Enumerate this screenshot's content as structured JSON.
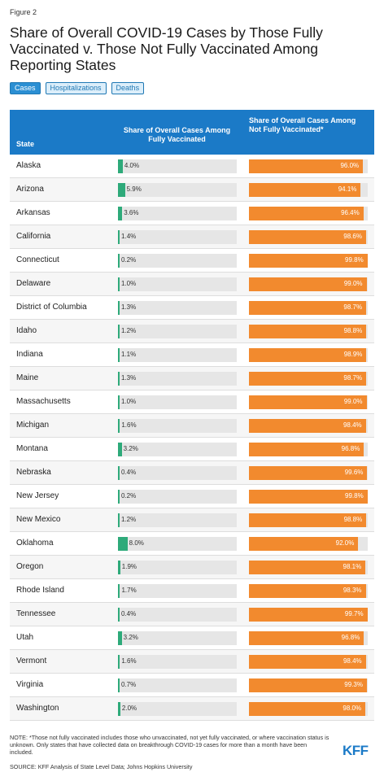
{
  "figure_label": "Figure 2",
  "title": "Share of Overall COVID-19 Cases by Those Fully Vaccinated v. Those Not Fully Vaccinated Among Reporting States",
  "tabs": [
    {
      "label": "Cases",
      "active": true
    },
    {
      "label": "Hospitalizations",
      "active": false
    },
    {
      "label": "Deaths",
      "active": false
    }
  ],
  "chart_data": {
    "type": "bar",
    "headers": {
      "state": "State",
      "fully_vaccinated": "Share of Overall Cases Among Fully Vaccinated",
      "not_fully_vaccinated": "Share of Overall Cases Among Not Fully Vaccinated*"
    },
    "xlim": [
      0,
      100
    ],
    "colors": {
      "fully_vaccinated": "#2eaa7a",
      "not_fully_vaccinated": "#f28a2e"
    },
    "categories": [
      "Alaska",
      "Arizona",
      "Arkansas",
      "California",
      "Connecticut",
      "Delaware",
      "District of Columbia",
      "Idaho",
      "Indiana",
      "Maine",
      "Massachusetts",
      "Michigan",
      "Montana",
      "Nebraska",
      "New Jersey",
      "New Mexico",
      "Oklahoma",
      "Oregon",
      "Rhode Island",
      "Tennessee",
      "Utah",
      "Vermont",
      "Virginia",
      "Washington"
    ],
    "series": [
      {
        "key": "fully_vaccinated",
        "values": [
          4.0,
          5.9,
          3.6,
          1.4,
          0.2,
          1.0,
          1.3,
          1.2,
          1.1,
          1.3,
          1.0,
          1.6,
          3.2,
          0.4,
          0.2,
          1.2,
          8.0,
          1.9,
          1.7,
          0.4,
          3.2,
          1.6,
          0.7,
          2.0
        ]
      },
      {
        "key": "not_fully_vaccinated",
        "values": [
          96.0,
          94.1,
          96.4,
          98.6,
          99.8,
          99.0,
          98.7,
          98.8,
          98.9,
          98.7,
          99.0,
          98.4,
          96.8,
          99.6,
          99.8,
          98.8,
          92.0,
          98.1,
          98.3,
          99.7,
          96.8,
          98.4,
          99.3,
          98.0
        ]
      }
    ]
  },
  "note": "NOTE: *Those not fully vaccinated includes those who unvaccinated, not yet fully vaccinated, or where vaccination status is unknown. Only states that have collected data on breakthrough COVID-19 cases for more than a month have been included.",
  "source": "SOURCE: KFF Analysis of State Level Data; Johns Hopkins University",
  "logo_text": "KFF"
}
